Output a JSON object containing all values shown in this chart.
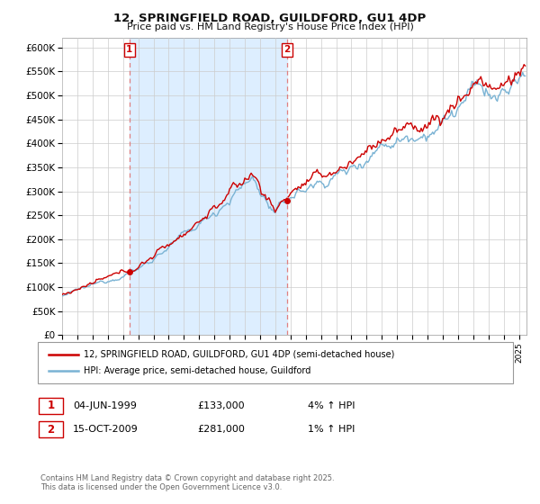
{
  "title": "12, SPRINGFIELD ROAD, GUILDFORD, GU1 4DP",
  "subtitle": "Price paid vs. HM Land Registry's House Price Index (HPI)",
  "legend_line1": "12, SPRINGFIELD ROAD, GUILDFORD, GU1 4DP (semi-detached house)",
  "legend_line2": "HPI: Average price, semi-detached house, Guildford",
  "sale1_year": 1999.42,
  "sale1_value": 133000,
  "sale2_year": 2009.79,
  "sale2_value": 281000,
  "price_line_color": "#cc0000",
  "hpi_line_color": "#7ab3d4",
  "sale_marker_color": "#cc0000",
  "vline_color": "#e08080",
  "fill_color": "#ddeeff",
  "grid_color": "#cccccc",
  "background_color": "#ffffff",
  "ylim": [
    0,
    620000
  ],
  "xlim_start": 1995,
  "xlim_end": 2025.5,
  "copyright_text": "Contains HM Land Registry data © Crown copyright and database right 2025.\nThis data is licensed under the Open Government Licence v3.0."
}
